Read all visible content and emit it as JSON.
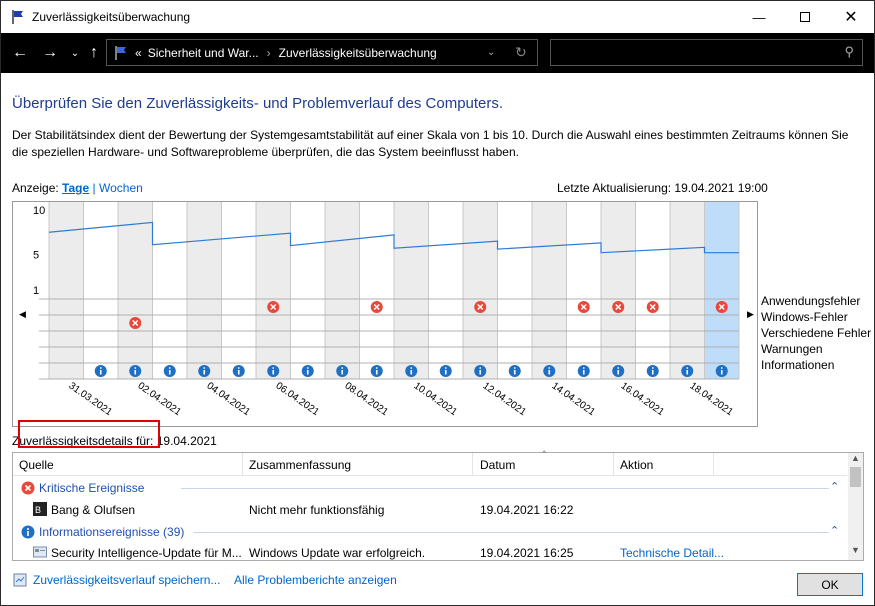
{
  "window": {
    "title": "Zuverlässigkeitsüberwachung"
  },
  "nav": {
    "breadcrumb_chevrons": "«",
    "crumb1": "Sicherheit und War...",
    "crumb_sep": "›",
    "crumb2": "Zuverlässigkeitsüberwachung",
    "search_placeholder": ""
  },
  "main": {
    "heading": "Überprüfen Sie den Zuverlässigkeits- und Problemverlauf des Computers.",
    "description": "Der Stabilitätsindex dient der Bewertung der Systemgesamtstabilität auf einer Skala von 1 bis 10. Durch die Auswahl eines bestimmten Zeitraums können Sie die speziellen Hardware- und Softwareprobleme überprüfen, die das System beeinflusst haben.",
    "view_label": "Anzeige:",
    "view_days": "Tage",
    "view_sep": "|",
    "view_weeks": "Wochen",
    "last_update": "Letzte Aktualisierung: 19.04.2021 19:00"
  },
  "chart_data": {
    "type": "line",
    "y_ticks": [
      "10",
      "5",
      "1"
    ],
    "ylim": [
      1,
      10
    ],
    "columns": 20,
    "selected_column": 19,
    "x_labels": [
      "31.03.2021",
      "02.04.2021",
      "04.04.2021",
      "06.04.2021",
      "08.04.2021",
      "10.04.2021",
      "12.04.2021",
      "14.04.2021",
      "16.04.2021",
      "18.04.2021"
    ],
    "stability_points": [
      [
        0,
        7.5
      ],
      [
        3,
        8.6
      ],
      [
        3,
        6.1
      ],
      [
        7,
        7.4
      ],
      [
        7,
        6.0
      ],
      [
        10,
        7.2
      ],
      [
        10,
        5.7
      ],
      [
        13,
        6.5
      ],
      [
        13,
        5.6
      ],
      [
        16,
        6.3
      ],
      [
        16,
        5.2
      ],
      [
        18,
        5.6
      ],
      [
        19,
        5.8
      ],
      [
        19,
        5.2
      ]
    ],
    "categories": [
      "Anwendungsfehler",
      "Windows-Fehler",
      "Verschiedene Fehler",
      "Warnungen",
      "Informationen"
    ],
    "app_failures": [
      6,
      9,
      12,
      15,
      16,
      17,
      19
    ],
    "misc_failures": [
      2
    ],
    "info_events": [
      1,
      2,
      3,
      4,
      5,
      6,
      7,
      8,
      9,
      10,
      11,
      12,
      13,
      14,
      15,
      16,
      17,
      18,
      19
    ]
  },
  "details": {
    "label": "Zuverlässigkeitsdetails für: 19.04.2021",
    "columns": {
      "source": "Quelle",
      "summary": "Zusammenfassung",
      "date": "Datum",
      "action": "Aktion"
    },
    "groups": [
      {
        "label": "Kritische Ereignisse",
        "icon": "error-icon"
      },
      {
        "label": "Informationsereignisse (39)",
        "icon": "info-icon"
      }
    ],
    "rows": [
      {
        "source": "Bang & Olufsen",
        "summary": "Nicht mehr funktionsfähig",
        "date": "19.04.2021 16:22",
        "action": ""
      },
      {
        "source": "Security Intelligence-Update für M...",
        "summary": "Windows Update war erfolgreich.",
        "date": "19.04.2021 16:25",
        "action": "Technische Detail..."
      }
    ]
  },
  "footer": {
    "save_link": "Zuverlässigkeitsverlauf speichern...",
    "reports_link": "Alle Problemberichte anzeigen",
    "ok": "OK"
  },
  "colors": {
    "accent": "#1e3d8f",
    "link": "#0066cc",
    "error": "#e8483a",
    "info": "#1f6fc4",
    "line": "#2e7bd6",
    "highlight": "#bfdcf8"
  }
}
